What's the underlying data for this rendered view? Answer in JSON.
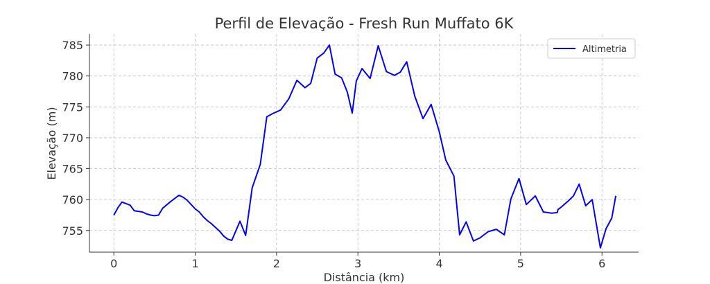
{
  "chart_data": {
    "type": "line",
    "title": "Perfil de Elevação - Fresh Run Muffato 6K",
    "xlabel": "Distância (km)",
    "ylabel": "Elevação (m)",
    "xlim": [
      -0.3,
      6.45
    ],
    "ylim": [
      751.5,
      786.8
    ],
    "xticks": [
      0,
      1,
      2,
      3,
      4,
      5,
      6
    ],
    "yticks": [
      755,
      760,
      765,
      770,
      775,
      780,
      785
    ],
    "grid": true,
    "legend": "top-right",
    "series": [
      {
        "name": "Altimetria",
        "color": "#0000ff",
        "x": [
          0.0,
          0.05,
          0.1,
          0.2,
          0.25,
          0.3,
          0.35,
          0.4,
          0.45,
          0.5,
          0.55,
          0.6,
          0.7,
          0.8,
          0.85,
          0.9,
          0.95,
          1.0,
          1.05,
          1.1,
          1.15,
          1.2,
          1.3,
          1.35,
          1.4,
          1.45,
          1.55,
          1.62,
          1.7,
          1.8,
          1.88,
          1.95,
          2.05,
          2.15,
          2.25,
          2.35,
          2.42,
          2.5,
          2.58,
          2.65,
          2.72,
          2.8,
          2.87,
          2.93,
          2.98,
          3.05,
          3.15,
          3.25,
          3.35,
          3.45,
          3.52,
          3.6,
          3.7,
          3.8,
          3.9,
          4.0,
          4.08,
          4.18,
          4.25,
          4.33,
          4.42,
          4.5,
          4.6,
          4.7,
          4.8,
          4.88,
          4.98,
          5.07,
          5.18,
          5.28,
          5.38,
          5.45,
          5.46,
          5.5,
          5.58,
          5.65,
          5.72,
          5.8,
          5.88,
          5.98,
          6.05,
          6.12,
          6.17
        ],
        "y": [
          757.5,
          758.7,
          759.6,
          759.1,
          758.2,
          758.1,
          758.0,
          757.7,
          757.5,
          757.4,
          757.5,
          758.6,
          759.7,
          760.7,
          760.4,
          759.9,
          759.2,
          758.5,
          758.0,
          757.2,
          756.6,
          756.1,
          754.9,
          754.1,
          753.6,
          753.4,
          756.5,
          754.2,
          761.9,
          765.7,
          773.4,
          773.9,
          774.5,
          776.3,
          779.3,
          778.1,
          778.8,
          782.9,
          783.7,
          785.0,
          780.3,
          779.7,
          777.4,
          774.0,
          779.2,
          781.2,
          779.6,
          784.9,
          780.7,
          780.1,
          780.6,
          782.3,
          776.7,
          773.1,
          775.4,
          771.0,
          766.4,
          763.8,
          754.3,
          756.4,
          753.3,
          753.8,
          754.8,
          755.2,
          754.3,
          760.1,
          763.4,
          759.2,
          760.6,
          758.0,
          757.8,
          757.9,
          758.4,
          758.8,
          759.7,
          760.6,
          762.5,
          759.0,
          760.0,
          752.2,
          755.3,
          757.0,
          760.6
        ]
      }
    ]
  }
}
